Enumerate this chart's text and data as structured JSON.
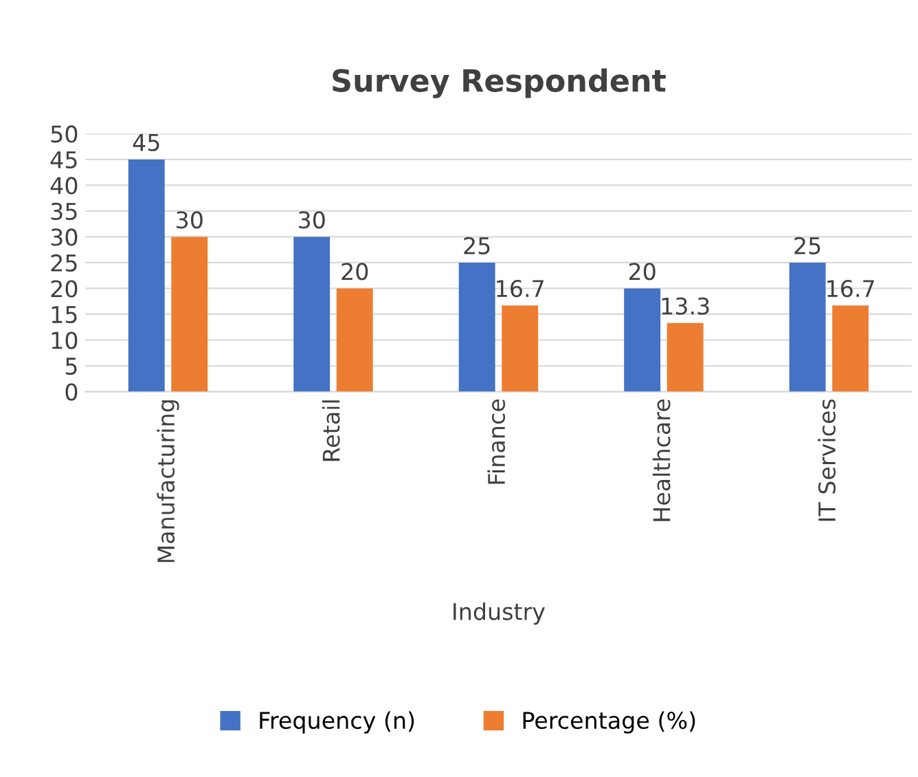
{
  "chart_data": {
    "type": "bar",
    "title": "Survey Respondent",
    "xlabel": "Industry",
    "categories": [
      "Manufacturing",
      "Retail",
      "Finance",
      "Healthcare",
      "IT Services"
    ],
    "series": [
      {
        "name": "Frequency (n)",
        "color": "#4472c4",
        "values": [
          45,
          30,
          25,
          20,
          25
        ]
      },
      {
        "name": "Percentage (%)",
        "color": "#ed7d31",
        "values": [
          30,
          20,
          16.7,
          13.3,
          16.7
        ]
      }
    ],
    "ylim": [
      0,
      50
    ],
    "yticks": [
      0,
      5,
      10,
      15,
      20,
      25,
      30,
      35,
      40,
      45,
      50
    ],
    "grid": "y",
    "legend": "bottom",
    "data_labels": true
  }
}
